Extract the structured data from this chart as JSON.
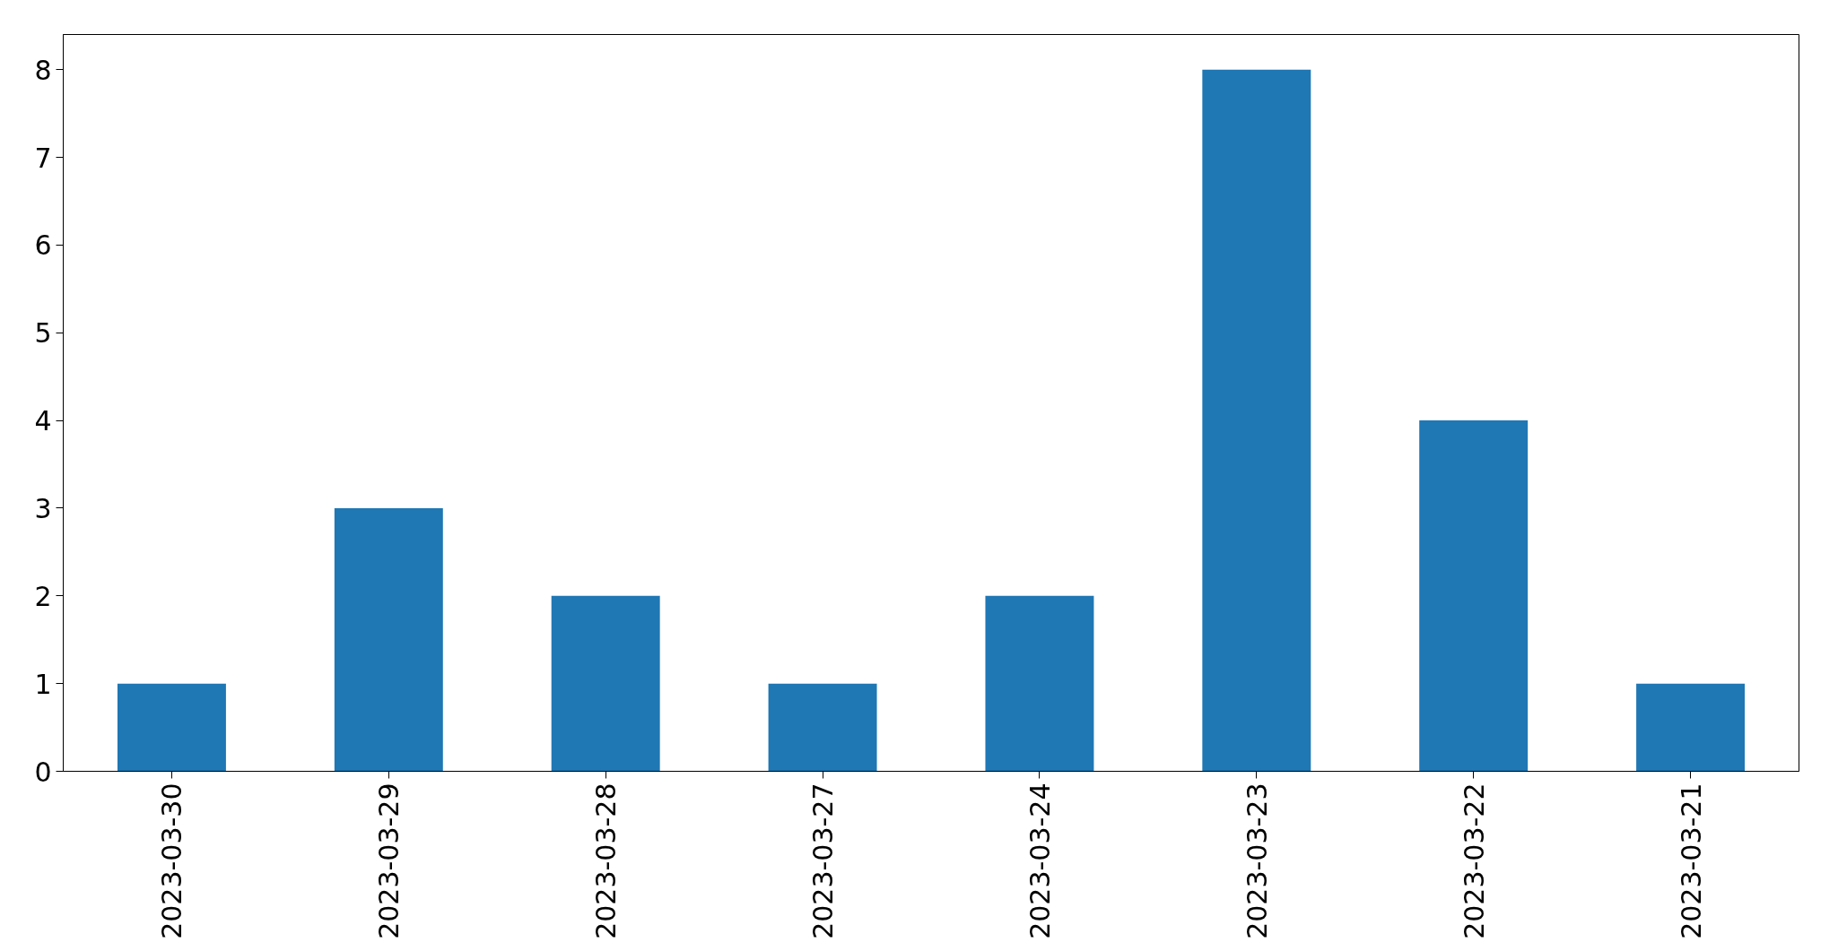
{
  "chart_data": {
    "type": "bar",
    "categories": [
      "2023-03-30",
      "2023-03-29",
      "2023-03-28",
      "2023-03-27",
      "2023-03-24",
      "2023-03-23",
      "2023-03-22",
      "2023-03-21"
    ],
    "values": [
      1,
      3,
      2,
      1,
      2,
      8,
      4,
      1
    ],
    "color": "#1f77b4",
    "ylim": [
      0,
      8.4
    ],
    "yticks": [
      0,
      1,
      2,
      3,
      4,
      5,
      6,
      7,
      8
    ],
    "grid": false
  }
}
